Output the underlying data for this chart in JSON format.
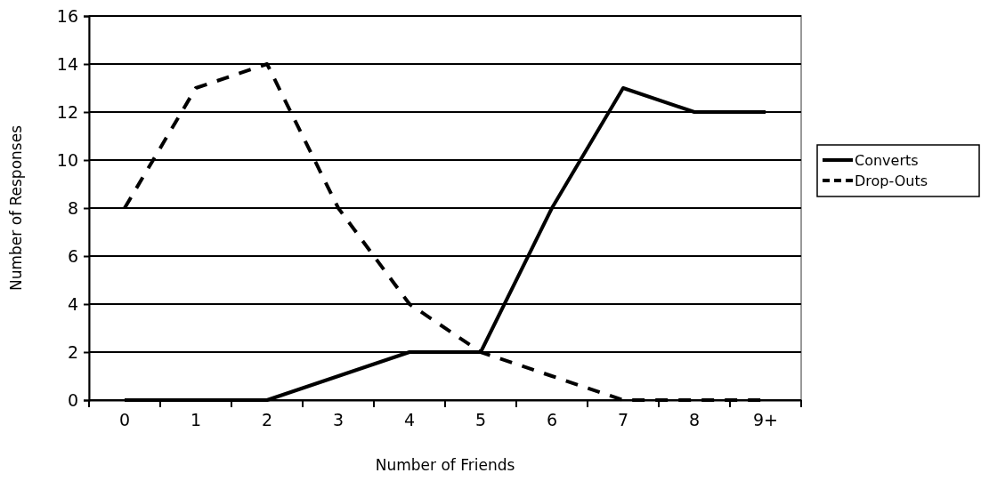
{
  "chart_data": {
    "type": "line",
    "xlabel": "Number of Friends",
    "ylabel": "Number of Responses",
    "categories": [
      "0",
      "1",
      "2",
      "3",
      "4",
      "5",
      "6",
      "7",
      "8",
      "9+"
    ],
    "series": [
      {
        "name": "Converts",
        "color": "#000000",
        "line_style": "solid",
        "values": [
          0,
          0,
          0,
          1,
          2,
          2,
          8,
          13,
          12,
          12
        ]
      },
      {
        "name": "Drop-Outs",
        "color": "#000000",
        "line_style": "dashed",
        "values": [
          8,
          13,
          14,
          8,
          4,
          2,
          1,
          0,
          0,
          0
        ]
      }
    ],
    "ylim": [
      0,
      16
    ],
    "yticks": [
      0,
      2,
      4,
      6,
      8,
      10,
      12,
      14,
      16
    ],
    "grid": "y",
    "legend": "right",
    "marker": "none"
  }
}
